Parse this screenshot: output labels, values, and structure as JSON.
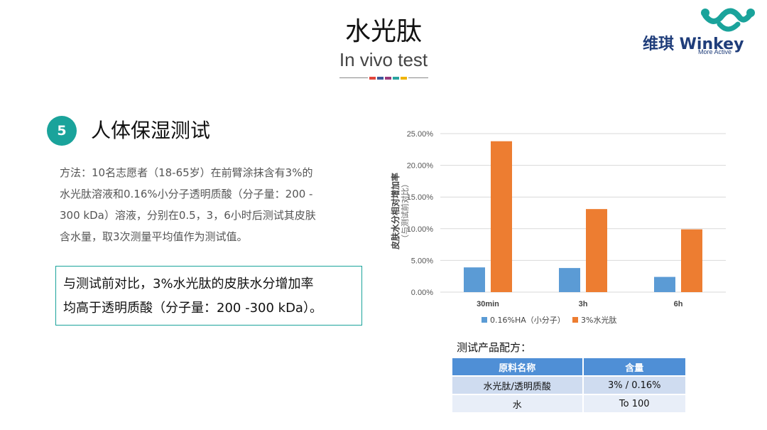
{
  "header": {
    "title": "水光肽",
    "subtitle": "In vivo test",
    "divider_colors": [
      "#e0463c",
      "#3b5a9a",
      "#9a3a7a",
      "#2aa3a0",
      "#f0b400"
    ]
  },
  "logo": {
    "brand": "维琪 Winkey",
    "tagline": "More Active",
    "icon": "winkey-wave-logo",
    "color": "#1aa39b"
  },
  "section": {
    "number": "5",
    "heading": "人体保湿测试",
    "method_lines": [
      "方法：10名志愿者（18-65岁）在前臂涂抹含有3%的",
      "水光肽溶液和0.16%小分子透明质酸（分子量：200 -",
      "300 kDa）溶液，分别在0.5，3，6小时后测试其皮肤",
      "含水量，取3次测量平均值作为测试值。"
    ],
    "conclusion_lines": [
      "与测试前对比，3%水光肽的皮肤水分增加率",
      "均高于透明质酸（分子量：200 -300 kDa）。"
    ]
  },
  "chart_data": {
    "type": "bar",
    "categories": [
      "30min",
      "3h",
      "6h"
    ],
    "series": [
      {
        "name": "0.16%HA（小分子）",
        "values": [
          3.9,
          3.8,
          2.4
        ],
        "color": "#5b9bd5"
      },
      {
        "name": "3%水光肽",
        "values": [
          23.8,
          13.1,
          9.9
        ],
        "color": "#ed7d31"
      }
    ],
    "ylabel": "皮肤水分相对增加率",
    "ylabel_sub": "（与测试前对比）",
    "ylim": [
      0,
      25
    ],
    "yticks": [
      "0.00%",
      "5.00%",
      "10.00%",
      "15.00%",
      "20.00%",
      "25.00%"
    ],
    "grid": true,
    "legend": "bottom"
  },
  "formula": {
    "label": "测试产品配方：",
    "headers": [
      "原料名称",
      "含量"
    ],
    "rows": [
      [
        "水光肽/透明质酸",
        "3% / 0.16%"
      ],
      [
        "水",
        "To 100"
      ]
    ]
  }
}
